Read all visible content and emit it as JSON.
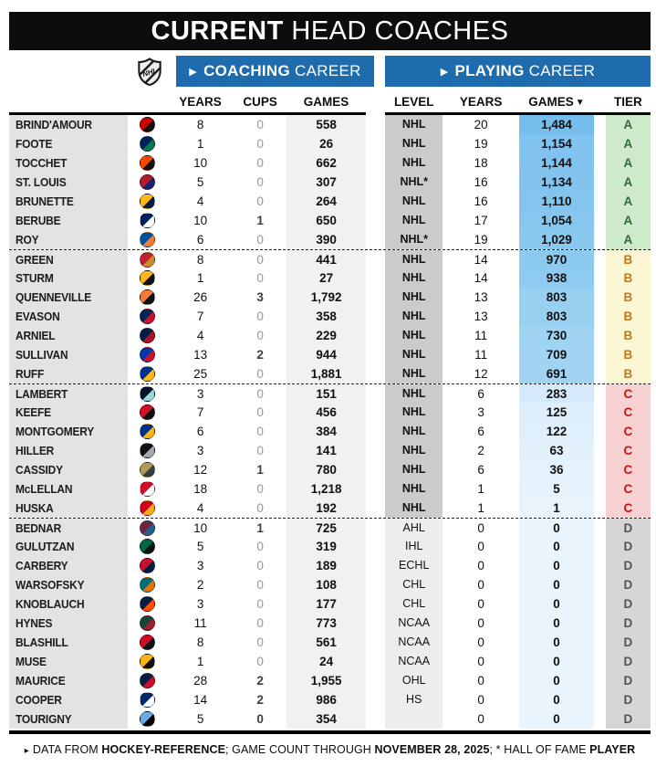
{
  "title": {
    "bold": "CURRENT",
    "rest": " HEAD COACHES"
  },
  "league_logo": "NHL",
  "sections": {
    "coaching": {
      "arrow": "▶",
      "bold": "COACHING",
      "rest": " CAREER"
    },
    "playing": {
      "arrow": "▶",
      "bold": "PLAYING",
      "rest": " CAREER"
    }
  },
  "columns": {
    "coach_years": "YEARS",
    "cups": "CUPS",
    "coach_games": "GAMES",
    "level": "LEVEL",
    "play_years": "YEARS",
    "play_games": "GAMES",
    "sort_arrow": "▼",
    "tier": "TIER"
  },
  "colors": {
    "banner_blue": "#1E6BAE",
    "title_bg": "#0D0D0D",
    "name_col_bg": "#E3E3E3",
    "coach_games_col_bg": "#F1F1F1",
    "level_col_bg": "#CBCBCB",
    "level_col_bg_light": "#EDEDED",
    "cups_zero_gray": "#979797"
  },
  "tiers": {
    "A": {
      "bg": "#CEE9CC",
      "fg": "#2F6D33"
    },
    "B": {
      "bg": "#FBF6D3",
      "fg": "#C0791B"
    },
    "C": {
      "bg": "#F8D2D2",
      "fg": "#CC1212"
    },
    "D": {
      "bg": "#D6D6D6",
      "fg": "#53535C"
    }
  },
  "rows": [
    {
      "name": "BRIND'AMOUR",
      "team": "Carolina Hurricanes",
      "logo": [
        "#CC0000",
        "#111111"
      ],
      "cy": "8",
      "cups": "0",
      "cups_bold": false,
      "cg": "558",
      "lvl": "NHL",
      "lvl_light": false,
      "py": "20",
      "pg": "1,484",
      "pg_bg": "#74BDEC",
      "tier": "A",
      "group_start": false
    },
    {
      "name": "FOOTE",
      "team": "Vancouver Canucks",
      "logo": [
        "#00205B",
        "#047A4A"
      ],
      "cy": "1",
      "cups": "0",
      "cups_bold": false,
      "cg": "26",
      "lvl": "NHL",
      "lvl_light": false,
      "py": "19",
      "pg": "1,154",
      "pg_bg": "#80C3EE",
      "tier": "A",
      "group_start": false
    },
    {
      "name": "TOCCHET",
      "team": "Philadelphia Flyers",
      "logo": [
        "#F74902",
        "#111111"
      ],
      "cy": "10",
      "cups": "0",
      "cups_bold": false,
      "cg": "662",
      "lvl": "NHL",
      "lvl_light": false,
      "py": "18",
      "pg": "1,144",
      "pg_bg": "#81C3EE",
      "tier": "A",
      "group_start": false
    },
    {
      "name": "ST. LOUIS",
      "team": "Montreal Canadiens",
      "logo": [
        "#AF1E2D",
        "#192168"
      ],
      "cy": "5",
      "cups": "0",
      "cups_bold": false,
      "cg": "307",
      "lvl": "NHL*",
      "lvl_light": false,
      "py": "16",
      "pg": "1,134",
      "pg_bg": "#82C4EE",
      "tier": "A",
      "group_start": false
    },
    {
      "name": "BRUNETTE",
      "team": "Nashville Predators",
      "logo": [
        "#FFB81C",
        "#041E42"
      ],
      "cy": "4",
      "cups": "0",
      "cups_bold": false,
      "cg": "264",
      "lvl": "NHL",
      "lvl_light": false,
      "py": "16",
      "pg": "1,110",
      "pg_bg": "#84C5EE",
      "tier": "A",
      "group_start": false
    },
    {
      "name": "BERUBE",
      "team": "Toronto Maple Leafs",
      "logo": [
        "#00205B",
        "#FFFFFF"
      ],
      "cy": "10",
      "cups": "1",
      "cups_bold": true,
      "cg": "650",
      "lvl": "NHL",
      "lvl_light": false,
      "py": "17",
      "pg": "1,054",
      "pg_bg": "#87C7EF",
      "tier": "A",
      "group_start": false
    },
    {
      "name": "ROY",
      "team": "New York Islanders",
      "logo": [
        "#00539B",
        "#F47D30"
      ],
      "cy": "6",
      "cups": "0",
      "cups_bold": false,
      "cg": "390",
      "lvl": "NHL*",
      "lvl_light": false,
      "py": "19",
      "pg": "1,029",
      "pg_bg": "#89C8EF",
      "tier": "A",
      "group_start": false
    },
    {
      "name": "GREEN",
      "team": "Ottawa Senators",
      "logo": [
        "#C52032",
        "#C2912C"
      ],
      "cy": "8",
      "cups": "0",
      "cups_bold": false,
      "cg": "441",
      "lvl": "NHL",
      "lvl_light": false,
      "py": "14",
      "pg": "970",
      "pg_bg": "#8DCAF0",
      "tier": "B",
      "group_start": true
    },
    {
      "name": "STURM",
      "team": "Boston Bruins",
      "logo": [
        "#FFB81C",
        "#111111"
      ],
      "cy": "1",
      "cups": "0",
      "cups_bold": false,
      "cg": "27",
      "lvl": "NHL",
      "lvl_light": false,
      "py": "14",
      "pg": "938",
      "pg_bg": "#8FCBF0",
      "tier": "B",
      "group_start": false
    },
    {
      "name": "QUENNEVILLE",
      "team": "Anaheim Ducks",
      "logo": [
        "#F47A38",
        "#111111"
      ],
      "cy": "26",
      "cups": "3",
      "cups_bold": true,
      "cg": "1,792",
      "lvl": "NHL",
      "lvl_light": false,
      "py": "13",
      "pg": "803",
      "pg_bg": "#98D0F1",
      "tier": "B",
      "group_start": false
    },
    {
      "name": "EVASON",
      "team": "Columbus Blue Jackets",
      "logo": [
        "#002654",
        "#CE1126"
      ],
      "cy": "7",
      "cups": "0",
      "cups_bold": false,
      "cg": "358",
      "lvl": "NHL",
      "lvl_light": false,
      "py": "13",
      "pg": "803",
      "pg_bg": "#98D0F1",
      "tier": "B",
      "group_start": false
    },
    {
      "name": "ARNIEL",
      "team": "Winnipeg Jets",
      "logo": [
        "#041E42",
        "#AC162C"
      ],
      "cy": "4",
      "cups": "0",
      "cups_bold": false,
      "cg": "229",
      "lvl": "NHL",
      "lvl_light": false,
      "py": "11",
      "pg": "730",
      "pg_bg": "#9ED3F2",
      "tier": "B",
      "group_start": false
    },
    {
      "name": "SULLIVAN",
      "team": "New York Rangers",
      "logo": [
        "#0038A8",
        "#CE1126"
      ],
      "cy": "13",
      "cups": "2",
      "cups_bold": true,
      "cg": "944",
      "lvl": "NHL",
      "lvl_light": false,
      "py": "11",
      "pg": "709",
      "pg_bg": "#A0D4F2",
      "tier": "B",
      "group_start": false
    },
    {
      "name": "RUFF",
      "team": "Buffalo Sabres",
      "logo": [
        "#003087",
        "#FFB81C"
      ],
      "cy": "25",
      "cups": "0",
      "cups_bold": false,
      "cg": "1,881",
      "lvl": "NHL",
      "lvl_light": false,
      "py": "12",
      "pg": "691",
      "pg_bg": "#A1D4F2",
      "tier": "B",
      "group_start": false
    },
    {
      "name": "LAMBERT",
      "team": "Seattle Kraken",
      "logo": [
        "#001628",
        "#99D9D9"
      ],
      "cy": "3",
      "cups": "0",
      "cups_bold": false,
      "cg": "151",
      "lvl": "NHL",
      "lvl_light": false,
      "py": "6",
      "pg": "283",
      "pg_bg": "#D4EAFA",
      "tier": "C",
      "group_start": true
    },
    {
      "name": "KEEFE",
      "team": "New Jersey Devils",
      "logo": [
        "#CE1126",
        "#111111"
      ],
      "cy": "7",
      "cups": "0",
      "cups_bold": false,
      "cg": "456",
      "lvl": "NHL",
      "lvl_light": false,
      "py": "3",
      "pg": "125",
      "pg_bg": "#DEEFFB",
      "tier": "C",
      "group_start": false
    },
    {
      "name": "MONTGOMERY",
      "team": "St. Louis Blues",
      "logo": [
        "#002F87",
        "#FCB514"
      ],
      "cy": "6",
      "cups": "0",
      "cups_bold": false,
      "cg": "384",
      "lvl": "NHL",
      "lvl_light": false,
      "py": "6",
      "pg": "122",
      "pg_bg": "#DFEFFB",
      "tier": "C",
      "group_start": false
    },
    {
      "name": "HILLER",
      "team": "Los Angeles Kings",
      "logo": [
        "#111111",
        "#A2AAAD"
      ],
      "cy": "3",
      "cups": "0",
      "cups_bold": false,
      "cg": "141",
      "lvl": "NHL",
      "lvl_light": false,
      "py": "2",
      "pg": "63",
      "pg_bg": "#E3F1FB",
      "tier": "C",
      "group_start": false
    },
    {
      "name": "CASSIDY",
      "team": "Vegas Golden Knights",
      "logo": [
        "#B4975A",
        "#333F42"
      ],
      "cy": "12",
      "cups": "1",
      "cups_bold": true,
      "cg": "780",
      "lvl": "NHL",
      "lvl_light": false,
      "py": "6",
      "pg": "36",
      "pg_bg": "#E5F2FC",
      "tier": "C",
      "group_start": false
    },
    {
      "name": "McLELLAN",
      "team": "Detroit Red Wings",
      "logo": [
        "#CE1126",
        "#FFFFFF"
      ],
      "cy": "18",
      "cups": "0",
      "cups_bold": false,
      "cg": "1,218",
      "lvl": "NHL",
      "lvl_light": false,
      "py": "1",
      "pg": "5",
      "pg_bg": "#E7F3FC",
      "tier": "C",
      "group_start": false
    },
    {
      "name": "HUSKA",
      "team": "Calgary Flames",
      "logo": [
        "#D2001C",
        "#FAAF19"
      ],
      "cy": "4",
      "cups": "0",
      "cups_bold": false,
      "cg": "192",
      "lvl": "NHL",
      "lvl_light": false,
      "py": "1",
      "pg": "1",
      "pg_bg": "#E8F3FC",
      "tier": "C",
      "group_start": false
    },
    {
      "name": "BEDNAR",
      "team": "Colorado Avalanche",
      "logo": [
        "#6F263D",
        "#236192"
      ],
      "cy": "10",
      "cups": "1",
      "cups_bold": true,
      "cg": "725",
      "lvl": "AHL",
      "lvl_light": true,
      "py": "0",
      "pg": "0",
      "pg_bg": "#EAF4FC",
      "tier": "D",
      "group_start": true
    },
    {
      "name": "GULUTZAN",
      "team": "Dallas Stars",
      "logo": [
        "#006847",
        "#111111"
      ],
      "cy": "5",
      "cups": "0",
      "cups_bold": false,
      "cg": "319",
      "lvl": "IHL",
      "lvl_light": true,
      "py": "0",
      "pg": "0",
      "pg_bg": "#EAF4FC",
      "tier": "D",
      "group_start": false
    },
    {
      "name": "CARBERY",
      "team": "Washington Capitals",
      "logo": [
        "#C8102E",
        "#041E42"
      ],
      "cy": "3",
      "cups": "0",
      "cups_bold": false,
      "cg": "189",
      "lvl": "ECHL",
      "lvl_light": true,
      "py": "0",
      "pg": "0",
      "pg_bg": "#EAF4FC",
      "tier": "D",
      "group_start": false
    },
    {
      "name": "WARSOFSKY",
      "team": "San Jose Sharks",
      "logo": [
        "#006D75",
        "#EA7200"
      ],
      "cy": "2",
      "cups": "0",
      "cups_bold": false,
      "cg": "108",
      "lvl": "CHL",
      "lvl_light": true,
      "py": "0",
      "pg": "0",
      "pg_bg": "#EAF4FC",
      "tier": "D",
      "group_start": false
    },
    {
      "name": "KNOBLAUCH",
      "team": "Edmonton Oilers",
      "logo": [
        "#041E42",
        "#FF4C00"
      ],
      "cy": "3",
      "cups": "0",
      "cups_bold": false,
      "cg": "177",
      "lvl": "CHL",
      "lvl_light": true,
      "py": "0",
      "pg": "0",
      "pg_bg": "#EAF4FC",
      "tier": "D",
      "group_start": false
    },
    {
      "name": "HYNES",
      "team": "Minnesota Wild",
      "logo": [
        "#154734",
        "#A6192E"
      ],
      "cy": "11",
      "cups": "0",
      "cups_bold": false,
      "cg": "773",
      "lvl": "NCAA",
      "lvl_light": true,
      "py": "0",
      "pg": "0",
      "pg_bg": "#EAF4FC",
      "tier": "D",
      "group_start": false
    },
    {
      "name": "BLASHILL",
      "team": "Chicago Blackhawks",
      "logo": [
        "#CF0A2C",
        "#111111"
      ],
      "cy": "8",
      "cups": "0",
      "cups_bold": false,
      "cg": "561",
      "lvl": "NCAA",
      "lvl_light": true,
      "py": "0",
      "pg": "0",
      "pg_bg": "#EAF4FC",
      "tier": "D",
      "group_start": false
    },
    {
      "name": "MUSE",
      "team": "Pittsburgh Penguins",
      "logo": [
        "#FCB514",
        "#111111"
      ],
      "cy": "1",
      "cups": "0",
      "cups_bold": false,
      "cg": "24",
      "lvl": "NCAA",
      "lvl_light": true,
      "py": "0",
      "pg": "0",
      "pg_bg": "#EAF4FC",
      "tier": "D",
      "group_start": false
    },
    {
      "name": "MAURICE",
      "team": "Florida Panthers",
      "logo": [
        "#041E42",
        "#C8102E"
      ],
      "cy": "28",
      "cups": "2",
      "cups_bold": true,
      "cg": "1,955",
      "lvl": "OHL",
      "lvl_light": true,
      "py": "0",
      "pg": "0",
      "pg_bg": "#EAF4FC",
      "tier": "D",
      "group_start": false
    },
    {
      "name": "COOPER",
      "team": "Tampa Bay Lightning",
      "logo": [
        "#002868",
        "#FFFFFF"
      ],
      "cy": "14",
      "cups": "2",
      "cups_bold": true,
      "cg": "986",
      "lvl": "HS",
      "lvl_light": true,
      "py": "0",
      "pg": "0",
      "pg_bg": "#EAF4FC",
      "tier": "D",
      "group_start": false
    },
    {
      "name": "TOURIGNY",
      "team": "Utah Mammoth",
      "logo": [
        "#6CACE4",
        "#010101"
      ],
      "cy": "5",
      "cups": "0",
      "cups_bold": true,
      "cg": "354",
      "lvl": "",
      "lvl_light": true,
      "py": "0",
      "pg": "0",
      "pg_bg": "#EAF4FC",
      "tier": "D",
      "group_start": false
    }
  ],
  "footer": {
    "icon": "▸",
    "parts": [
      {
        "text": "DATA FROM ",
        "bold": false
      },
      {
        "text": "HOCKEY-REFERENCE",
        "bold": true
      },
      {
        "text": "; GAME COUNT THROUGH ",
        "bold": false
      },
      {
        "text": "NOVEMBER 28, 2025",
        "bold": true
      },
      {
        "text": "; * HALL OF FAME ",
        "bold": false
      },
      {
        "text": "PLAYER",
        "bold": true
      }
    ]
  },
  "chart_data": {
    "type": "table",
    "title": "CURRENT HEAD COACHES",
    "column_groups": [
      "COACHING CAREER",
      "PLAYING CAREER"
    ],
    "columns": [
      "COACH",
      "TEAM",
      "COACHING YEARS",
      "CUPS",
      "COACHING GAMES",
      "PLAYING LEVEL",
      "PLAYING YEARS",
      "PLAYING GAMES",
      "TIER"
    ],
    "sorted_by": "PLAYING GAMES descending",
    "rows": [
      [
        "BRIND'AMOUR",
        "Carolina Hurricanes",
        8,
        0,
        558,
        "NHL",
        20,
        1484,
        "A"
      ],
      [
        "FOOTE",
        "Vancouver Canucks",
        1,
        0,
        26,
        "NHL",
        19,
        1154,
        "A"
      ],
      [
        "TOCCHET",
        "Philadelphia Flyers",
        10,
        0,
        662,
        "NHL",
        18,
        1144,
        "A"
      ],
      [
        "ST. LOUIS",
        "Montreal Canadiens",
        5,
        0,
        307,
        "NHL*",
        16,
        1134,
        "A"
      ],
      [
        "BRUNETTE",
        "Nashville Predators",
        4,
        0,
        264,
        "NHL",
        16,
        1110,
        "A"
      ],
      [
        "BERUBE",
        "Toronto Maple Leafs",
        10,
        1,
        650,
        "NHL",
        17,
        1054,
        "A"
      ],
      [
        "ROY",
        "New York Islanders",
        6,
        0,
        390,
        "NHL*",
        19,
        1029,
        "A"
      ],
      [
        "GREEN",
        "Ottawa Senators",
        8,
        0,
        441,
        "NHL",
        14,
        970,
        "B"
      ],
      [
        "STURM",
        "Boston Bruins",
        1,
        0,
        27,
        "NHL",
        14,
        938,
        "B"
      ],
      [
        "QUENNEVILLE",
        "Anaheim Ducks",
        26,
        3,
        1792,
        "NHL",
        13,
        803,
        "B"
      ],
      [
        "EVASON",
        "Columbus Blue Jackets",
        7,
        0,
        358,
        "NHL",
        13,
        803,
        "B"
      ],
      [
        "ARNIEL",
        "Winnipeg Jets",
        4,
        0,
        229,
        "NHL",
        11,
        730,
        "B"
      ],
      [
        "SULLIVAN",
        "New York Rangers",
        13,
        2,
        944,
        "NHL",
        11,
        709,
        "B"
      ],
      [
        "RUFF",
        "Buffalo Sabres",
        25,
        0,
        1881,
        "NHL",
        12,
        691,
        "B"
      ],
      [
        "LAMBERT",
        "Seattle Kraken",
        3,
        0,
        151,
        "NHL",
        6,
        283,
        "C"
      ],
      [
        "KEEFE",
        "New Jersey Devils",
        7,
        0,
        456,
        "NHL",
        3,
        125,
        "C"
      ],
      [
        "MONTGOMERY",
        "St. Louis Blues",
        6,
        0,
        384,
        "NHL",
        6,
        122,
        "C"
      ],
      [
        "HILLER",
        "Los Angeles Kings",
        3,
        0,
        141,
        "NHL",
        2,
        63,
        "C"
      ],
      [
        "CASSIDY",
        "Vegas Golden Knights",
        12,
        1,
        780,
        "NHL",
        6,
        36,
        "C"
      ],
      [
        "McLELLAN",
        "Detroit Red Wings",
        18,
        0,
        1218,
        "NHL",
        1,
        5,
        "C"
      ],
      [
        "HUSKA",
        "Calgary Flames",
        4,
        0,
        192,
        "NHL",
        1,
        1,
        "C"
      ],
      [
        "BEDNAR",
        "Colorado Avalanche",
        10,
        1,
        725,
        "AHL",
        0,
        0,
        "D"
      ],
      [
        "GULUTZAN",
        "Dallas Stars",
        5,
        0,
        319,
        "IHL",
        0,
        0,
        "D"
      ],
      [
        "CARBERY",
        "Washington Capitals",
        3,
        0,
        189,
        "ECHL",
        0,
        0,
        "D"
      ],
      [
        "WARSOFSKY",
        "San Jose Sharks",
        2,
        0,
        108,
        "CHL",
        0,
        0,
        "D"
      ],
      [
        "KNOBLAUCH",
        "Edmonton Oilers",
        3,
        0,
        177,
        "CHL",
        0,
        0,
        "D"
      ],
      [
        "HYNES",
        "Minnesota Wild",
        11,
        0,
        773,
        "NCAA",
        0,
        0,
        "D"
      ],
      [
        "BLASHILL",
        "Chicago Blackhawks",
        8,
        0,
        561,
        "NCAA",
        0,
        0,
        "D"
      ],
      [
        "MUSE",
        "Pittsburgh Penguins",
        1,
        0,
        24,
        "NCAA",
        0,
        0,
        "D"
      ],
      [
        "MAURICE",
        "Florida Panthers",
        28,
        2,
        1955,
        "OHL",
        0,
        0,
        "D"
      ],
      [
        "COOPER",
        "Tampa Bay Lightning",
        14,
        2,
        986,
        "HS",
        0,
        0,
        "D"
      ],
      [
        "TOURIGNY",
        "Utah Mammoth",
        5,
        0,
        354,
        "",
        0,
        0,
        "D"
      ]
    ]
  }
}
